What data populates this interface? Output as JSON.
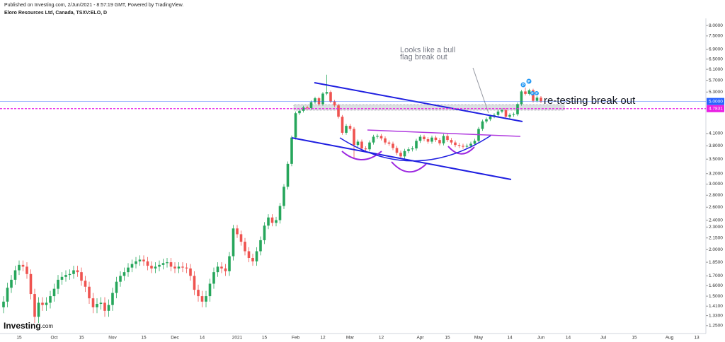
{
  "chart_data": {
    "type": "candlestick",
    "published": "Published on Investing.com, 2/Jun/2021 - 8:57:19 GMT, Powered by TradingView.",
    "title": "Eloro Resources Ltd, Canada, TSXV:ELO, D",
    "logo": "Investing",
    "logo_suffix": ".com",
    "log_scale": true,
    "grid": false,
    "up_color": "#26a65b",
    "down_color": "#ef5350",
    "categories": [
      null,
      null,
      null,
      null,
      "15",
      null,
      null,
      null,
      null,
      null,
      null,
      null,
      null,
      "Oct",
      null,
      null,
      null,
      null,
      null,
      null,
      "15",
      null,
      null,
      null,
      null,
      null,
      null,
      null,
      "Nov",
      null,
      null,
      null,
      null,
      null,
      null,
      null,
      "15",
      null,
      null,
      null,
      null,
      null,
      null,
      null,
      "Dec",
      null,
      null,
      null,
      null,
      null,
      null,
      "14",
      null,
      null,
      null,
      null,
      null,
      null,
      null,
      null,
      "2021",
      null,
      null,
      null,
      null,
      null,
      null,
      "15",
      null,
      null,
      null,
      null,
      null,
      null,
      null,
      "Feb",
      null,
      null,
      null,
      null,
      null,
      null,
      "12",
      null,
      null,
      null,
      null,
      null,
      null,
      "Mar",
      null,
      null,
      null,
      null,
      null,
      null,
      null,
      "12",
      null,
      null,
      null,
      null,
      null,
      null,
      null,
      null,
      null,
      "Apr",
      null,
      null,
      null,
      null,
      null,
      null,
      "15",
      null,
      null,
      null,
      null,
      null,
      null,
      null,
      "May",
      null,
      null,
      null,
      null,
      null,
      null,
      null,
      "14",
      null,
      null,
      null,
      null,
      null,
      null,
      null,
      "Jun",
      null,
      null,
      null,
      null,
      null,
      null,
      "14",
      null,
      null,
      null,
      null,
      null,
      null,
      null,
      null,
      "Jul",
      null,
      null,
      null,
      null,
      null,
      null,
      null,
      "15",
      null,
      null,
      null,
      null,
      null,
      null,
      null,
      null,
      "Aug",
      null,
      null,
      null,
      null,
      null,
      null,
      "13",
      null
    ],
    "open": [
      1.4,
      1.45,
      1.58,
      1.66,
      1.76,
      1.82,
      1.8,
      1.72,
      1.52,
      1.32,
      1.44,
      1.42,
      1.44,
      1.5,
      1.57,
      1.66,
      1.69,
      1.71,
      1.72,
      1.76,
      1.74,
      1.65,
      1.59,
      1.48,
      1.4,
      1.43,
      1.44,
      1.37,
      1.42,
      1.53,
      1.64,
      1.7,
      1.74,
      1.79,
      1.83,
      1.86,
      1.88,
      1.86,
      1.81,
      1.78,
      1.8,
      1.82,
      1.84,
      1.85,
      1.8,
      1.78,
      1.8,
      1.79,
      1.78,
      1.7,
      1.56,
      1.5,
      1.45,
      1.5,
      1.62,
      1.74,
      1.8,
      1.78,
      1.75,
      1.92,
      2.28,
      2.2,
      2.1,
      1.98,
      1.9,
      1.86,
      1.98,
      2.12,
      2.32,
      2.44,
      2.36,
      2.4,
      2.62,
      2.95,
      3.4,
      4.0,
      4.65,
      4.72,
      4.82,
      4.8,
      4.98,
      5.1,
      4.92,
      5.25,
      5.3,
      5.0,
      4.88,
      4.55,
      4.12,
      4.3,
      4.22,
      3.82,
      3.9,
      3.74,
      3.72,
      3.88,
      4.02,
      4.04,
      3.98,
      3.88,
      3.85,
      3.75,
      3.64,
      3.56,
      3.68,
      3.72,
      3.74,
      3.92,
      4.02,
      3.96,
      3.9,
      4.0,
      3.94,
      3.86,
      4.04,
      3.94,
      3.88,
      3.82,
      3.8,
      3.78,
      3.8,
      3.85,
      3.92,
      4.22,
      4.42,
      4.48,
      4.56,
      4.6,
      4.7,
      4.74,
      4.55,
      4.6,
      4.62,
      4.92,
      5.32,
      5.24,
      5.36,
      5.02,
      5.12,
      null,
      null,
      null,
      null,
      null,
      null,
      null,
      null,
      null,
      null,
      null,
      null,
      null,
      null,
      null,
      null,
      null,
      null,
      null,
      null,
      null,
      null,
      null,
      null,
      null,
      null,
      null,
      null,
      null,
      null,
      null,
      null,
      null,
      null,
      null,
      null,
      null,
      null,
      null,
      null,
      null
    ],
    "high": [
      1.5,
      1.63,
      1.71,
      1.81,
      1.87,
      1.87,
      1.85,
      1.77,
      1.57,
      1.49,
      1.49,
      1.49,
      1.55,
      1.62,
      1.71,
      1.74,
      1.76,
      1.77,
      1.81,
      1.81,
      1.79,
      1.7,
      1.64,
      1.53,
      1.48,
      1.49,
      1.49,
      1.47,
      1.58,
      1.69,
      1.75,
      1.79,
      1.84,
      1.88,
      1.91,
      1.93,
      1.93,
      1.91,
      1.86,
      1.85,
      1.87,
      1.89,
      1.9,
      1.9,
      1.85,
      1.85,
      1.85,
      1.84,
      1.83,
      1.75,
      1.61,
      1.55,
      1.55,
      1.67,
      1.79,
      1.85,
      1.85,
      1.83,
      1.97,
      2.33,
      2.33,
      2.25,
      2.15,
      2.03,
      1.95,
      2.03,
      2.17,
      2.37,
      2.49,
      2.49,
      2.45,
      2.67,
      3.0,
      3.45,
      4.05,
      4.7,
      4.77,
      4.87,
      4.87,
      5.03,
      5.15,
      5.15,
      5.3,
      5.9,
      5.35,
      5.05,
      4.93,
      4.6,
      4.35,
      4.35,
      4.27,
      3.95,
      3.95,
      3.79,
      3.93,
      4.07,
      4.09,
      4.09,
      4.03,
      3.93,
      3.9,
      3.8,
      3.69,
      3.73,
      3.77,
      3.79,
      3.97,
      4.07,
      4.07,
      4.01,
      4.05,
      4.05,
      3.99,
      4.09,
      4.09,
      3.99,
      3.93,
      3.87,
      3.85,
      3.85,
      3.9,
      3.97,
      4.27,
      4.47,
      4.53,
      4.61,
      4.65,
      4.75,
      4.79,
      4.79,
      4.65,
      4.67,
      4.97,
      5.37,
      5.45,
      5.41,
      5.41,
      5.17,
      5.17,
      null,
      null,
      null,
      null,
      null,
      null,
      null,
      null,
      null,
      null,
      null,
      null,
      null,
      null,
      null,
      null,
      null,
      null,
      null,
      null,
      null,
      null,
      null,
      null,
      null,
      null,
      null,
      null,
      null,
      null,
      null,
      null,
      null,
      null,
      null,
      null,
      null,
      null,
      null,
      null,
      null
    ],
    "low": [
      1.35,
      1.4,
      1.53,
      1.61,
      1.71,
      1.75,
      1.67,
      1.47,
      1.27,
      1.27,
      1.37,
      1.37,
      1.39,
      1.45,
      1.52,
      1.61,
      1.64,
      1.66,
      1.67,
      1.69,
      1.6,
      1.54,
      1.43,
      1.35,
      1.35,
      1.38,
      1.32,
      1.32,
      1.37,
      1.48,
      1.59,
      1.65,
      1.69,
      1.74,
      1.78,
      1.81,
      1.81,
      1.76,
      1.73,
      1.73,
      1.75,
      1.77,
      1.79,
      1.75,
      1.73,
      1.73,
      1.74,
      1.73,
      1.65,
      1.51,
      1.45,
      1.4,
      1.4,
      1.45,
      1.57,
      1.69,
      1.73,
      1.7,
      1.7,
      1.87,
      2.15,
      2.05,
      1.93,
      1.85,
      1.81,
      1.81,
      1.93,
      2.07,
      2.27,
      2.31,
      2.31,
      2.35,
      2.57,
      2.9,
      3.35,
      3.95,
      4.6,
      4.67,
      4.75,
      4.75,
      4.93,
      4.87,
      4.87,
      5.2,
      4.95,
      4.83,
      4.5,
      4.07,
      4.07,
      4.17,
      3.52,
      3.77,
      3.69,
      3.67,
      3.67,
      3.83,
      3.97,
      3.93,
      3.83,
      3.8,
      3.7,
      3.59,
      3.51,
      3.51,
      3.63,
      3.67,
      3.69,
      3.87,
      3.91,
      3.85,
      3.85,
      3.89,
      3.81,
      3.81,
      3.89,
      3.83,
      3.77,
      3.75,
      3.73,
      3.73,
      3.75,
      3.8,
      3.87,
      4.17,
      4.37,
      4.43,
      4.51,
      4.55,
      4.65,
      4.5,
      4.5,
      4.55,
      4.57,
      4.87,
      5.19,
      5.19,
      4.97,
      4.97,
      4.95,
      null,
      null,
      null,
      null,
      null,
      null,
      null,
      null,
      null,
      null,
      null,
      null,
      null,
      null,
      null,
      null,
      null,
      null,
      null,
      null,
      null,
      null,
      null,
      null,
      null,
      null,
      null,
      null,
      null,
      null,
      null,
      null,
      null,
      null,
      null,
      null,
      null,
      null,
      null,
      null,
      null
    ],
    "close": [
      1.45,
      1.58,
      1.66,
      1.76,
      1.82,
      1.8,
      1.72,
      1.52,
      1.32,
      1.44,
      1.42,
      1.44,
      1.5,
      1.57,
      1.66,
      1.69,
      1.71,
      1.72,
      1.76,
      1.74,
      1.65,
      1.59,
      1.48,
      1.4,
      1.43,
      1.44,
      1.37,
      1.42,
      1.53,
      1.64,
      1.7,
      1.74,
      1.79,
      1.83,
      1.86,
      1.88,
      1.86,
      1.81,
      1.78,
      1.8,
      1.82,
      1.84,
      1.85,
      1.8,
      1.78,
      1.8,
      1.79,
      1.78,
      1.7,
      1.56,
      1.5,
      1.45,
      1.5,
      1.62,
      1.74,
      1.8,
      1.78,
      1.75,
      1.92,
      2.28,
      2.2,
      2.1,
      1.98,
      1.9,
      1.86,
      1.98,
      2.12,
      2.32,
      2.44,
      2.36,
      2.4,
      2.62,
      2.95,
      3.4,
      4.0,
      4.65,
      4.72,
      4.82,
      4.8,
      4.98,
      5.1,
      4.92,
      5.25,
      5.3,
      5.0,
      4.88,
      4.55,
      4.12,
      4.3,
      4.22,
      3.82,
      3.9,
      3.74,
      3.72,
      3.88,
      4.02,
      4.04,
      3.98,
      3.88,
      3.85,
      3.75,
      3.64,
      3.56,
      3.68,
      3.72,
      3.74,
      3.92,
      4.02,
      3.96,
      3.9,
      4.0,
      3.94,
      3.86,
      4.04,
      3.94,
      3.88,
      3.82,
      3.8,
      3.78,
      3.8,
      3.85,
      3.92,
      4.22,
      4.42,
      4.48,
      4.56,
      4.6,
      4.7,
      4.74,
      4.55,
      4.6,
      4.62,
      4.92,
      5.32,
      5.24,
      5.36,
      5.02,
      5.12,
      5.0,
      null,
      null,
      null,
      null,
      null,
      null,
      null,
      null,
      null,
      null,
      null,
      null,
      null,
      null,
      null,
      null,
      null,
      null,
      null,
      null,
      null,
      null,
      null,
      null,
      null,
      null,
      null,
      null,
      null,
      null,
      null,
      null,
      null,
      null,
      null,
      null,
      null,
      null,
      null,
      null,
      null
    ],
    "ylim": [
      1.18,
      8.36
    ],
    "yticks": [
      {
        "value": 8,
        "label": "8.0000"
      },
      {
        "value": 7.5,
        "label": "7.5000"
      },
      {
        "value": 6.9,
        "label": "6.9000"
      },
      {
        "value": 6.5,
        "label": "6.5000"
      },
      {
        "value": 6.1,
        "label": "6.1000"
      },
      {
        "value": 5.7,
        "label": "5.7000"
      },
      {
        "value": 5.3,
        "label": "5.3000"
      },
      {
        "value": 4.1,
        "label": "4.1000"
      },
      {
        "value": 3.8,
        "label": "3.8000"
      },
      {
        "value": 3.5,
        "label": "3.5000"
      },
      {
        "value": 3.2,
        "label": "3.2000"
      },
      {
        "value": 3,
        "label": "3.0000"
      },
      {
        "value": 2.8,
        "label": "2.8000"
      },
      {
        "value": 2.6,
        "label": "2.6000"
      },
      {
        "value": 2.4,
        "label": "2.4000"
      },
      {
        "value": 2.3,
        "label": "2.3000"
      },
      {
        "value": 2.15,
        "label": "2.1500"
      },
      {
        "value": 2,
        "label": "2.0000"
      },
      {
        "value": 1.85,
        "label": "1.8500"
      },
      {
        "value": 1.7,
        "label": "1.7000"
      },
      {
        "value": 1.6,
        "label": "1.6000"
      },
      {
        "value": 1.5,
        "label": "1.5000"
      },
      {
        "value": 1.41,
        "label": "1.4100"
      },
      {
        "value": 1.33,
        "label": "1.3300"
      },
      {
        "value": 1.25,
        "label": "1.2500"
      }
    ],
    "price_line": {
      "value": 5,
      "label": "5.0000",
      "color": "#2962ff"
    },
    "alert_line": {
      "value": 4.7831,
      "label": "4.7831",
      "color": "#e91ee3"
    },
    "annotations": [
      {
        "text": "Looks like a bull",
        "color": "#787b86"
      },
      {
        "text": "flag break out",
        "color": "#787b86"
      },
      {
        "text": "re-testing break out",
        "color": "#131722"
      }
    ],
    "event_markers": [
      "P",
      "P",
      "P",
      "P"
    ]
  }
}
